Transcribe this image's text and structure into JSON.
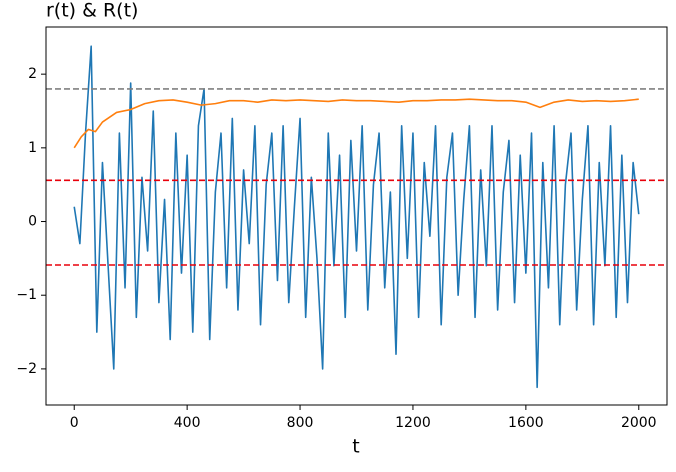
{
  "chart_data": {
    "type": "line",
    "title": "r(t) & R(t)",
    "xlabel": "t",
    "xlim": [
      -100,
      2100
    ],
    "ylim": [
      -2.49,
      2.64
    ],
    "xticks": [
      0,
      400,
      800,
      1200,
      1600,
      2000
    ],
    "yticks": [
      {
        "value": -2,
        "label": "−2"
      },
      {
        "value": -1,
        "label": "−1"
      },
      0,
      1,
      2
    ],
    "hlines": [
      {
        "value": 1.8,
        "color": "#808080"
      },
      {
        "value": 0.56,
        "color": "#e8000b"
      },
      {
        "value": -0.59,
        "color": "#e8000b"
      }
    ],
    "series": [
      {
        "color": "#1f77b4",
        "x": [
          0,
          20,
          40,
          60,
          80,
          100,
          120,
          140,
          160,
          180,
          200,
          220,
          240,
          260,
          280,
          300,
          320,
          340,
          360,
          380,
          400,
          420,
          440,
          460,
          480,
          500,
          520,
          540,
          560,
          580,
          600,
          620,
          640,
          660,
          680,
          700,
          720,
          740,
          760,
          780,
          800,
          820,
          840,
          860,
          880,
          900,
          920,
          940,
          960,
          980,
          1000,
          1020,
          1040,
          1060,
          1080,
          1100,
          1120,
          1140,
          1160,
          1180,
          1200,
          1220,
          1240,
          1260,
          1280,
          1300,
          1320,
          1340,
          1360,
          1380,
          1400,
          1420,
          1440,
          1460,
          1480,
          1500,
          1520,
          1540,
          1560,
          1580,
          1600,
          1620,
          1640,
          1660,
          1680,
          1700,
          1720,
          1740,
          1760,
          1780,
          1800,
          1820,
          1840,
          1860,
          1880,
          1900,
          1920,
          1940,
          1960,
          1980,
          2000
        ],
        "values": [
          0.2,
          -0.3,
          1.2,
          2.38,
          -1.5,
          0.8,
          -0.6,
          -2.0,
          1.2,
          -0.9,
          1.88,
          -1.3,
          0.6,
          -0.4,
          1.5,
          -1.1,
          0.3,
          -1.6,
          1.2,
          -0.7,
          0.9,
          -1.5,
          1.3,
          1.8,
          -1.6,
          0.4,
          1.2,
          -0.9,
          1.4,
          -1.2,
          0.7,
          -0.3,
          1.3,
          -1.4,
          0.5,
          1.2,
          -0.8,
          1.3,
          -1.1,
          0.2,
          1.4,
          -1.3,
          0.6,
          -0.5,
          -2.0,
          1.2,
          -0.6,
          0.9,
          -1.3,
          1.1,
          -0.4,
          1.3,
          -1.2,
          0.5,
          1.2,
          -0.9,
          0.4,
          -1.8,
          1.3,
          -0.5,
          1.2,
          -1.3,
          0.8,
          -0.2,
          1.3,
          -1.4,
          0.6,
          1.2,
          -1.0,
          0.3,
          1.3,
          -1.3,
          0.7,
          -0.6,
          1.3,
          -1.2,
          0.4,
          1.1,
          -1.1,
          0.9,
          -0.7,
          1.2,
          -2.25,
          0.8,
          -0.9,
          1.3,
          -1.4,
          0.5,
          1.2,
          -1.2,
          0.3,
          1.3,
          -1.4,
          0.8,
          -0.6,
          1.3,
          -1.3,
          0.9,
          -1.1,
          0.8,
          0.1
        ]
      },
      {
        "color": "#ff7f0e",
        "x": [
          0,
          25,
          50,
          75,
          100,
          150,
          200,
          250,
          300,
          350,
          400,
          450,
          500,
          550,
          600,
          650,
          700,
          750,
          800,
          850,
          900,
          950,
          1000,
          1050,
          1100,
          1150,
          1200,
          1250,
          1300,
          1350,
          1400,
          1450,
          1500,
          1550,
          1600,
          1650,
          1700,
          1750,
          1800,
          1850,
          1900,
          1950,
          2000
        ],
        "values": [
          1.0,
          1.15,
          1.25,
          1.22,
          1.35,
          1.48,
          1.52,
          1.6,
          1.64,
          1.65,
          1.62,
          1.58,
          1.6,
          1.64,
          1.64,
          1.62,
          1.65,
          1.64,
          1.65,
          1.64,
          1.63,
          1.65,
          1.64,
          1.64,
          1.63,
          1.62,
          1.64,
          1.64,
          1.65,
          1.65,
          1.66,
          1.65,
          1.64,
          1.64,
          1.62,
          1.55,
          1.62,
          1.65,
          1.63,
          1.64,
          1.63,
          1.64,
          1.66
        ]
      }
    ]
  }
}
